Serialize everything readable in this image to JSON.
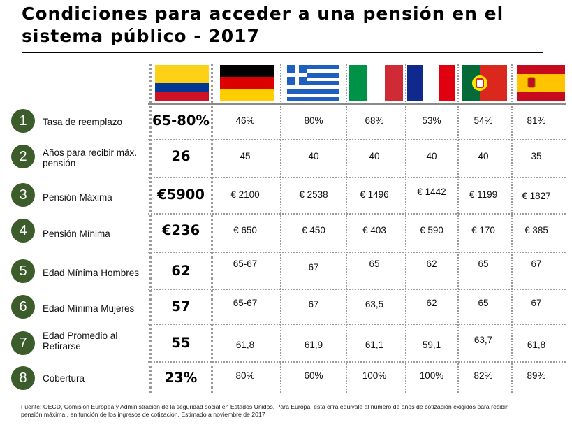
{
  "title": "Condiciones para acceder a una pensión en el sistema público - 2017",
  "countries": [
    "colombia-flag-icon",
    "germany-flag-icon",
    "greece-flag-icon",
    "italy-flag-icon",
    "france-flag-icon",
    "portugal-flag-icon",
    "spain-flag-icon"
  ],
  "rows": [
    {
      "num": "1",
      "label": "Tasa de reemplazo",
      "main": "65-80%",
      "values": [
        "46%",
        "80%",
        "68%",
        "53%",
        "54%",
        "81%"
      ]
    },
    {
      "num": "2",
      "label": "Años para recibir máx. pensión",
      "main": "26",
      "values": [
        "45",
        "40",
        "40",
        "40",
        "40",
        "35"
      ]
    },
    {
      "num": "3",
      "label": "Pensión Máxima",
      "main": "€5900",
      "values": [
        "€ 2100",
        "€ 2538",
        "€ 1496",
        "€ 1442",
        "€ 1199",
        "€ 1827"
      ]
    },
    {
      "num": "4",
      "label": "Pensión Mínima",
      "main": "€236",
      "values": [
        "€ 650",
        "€ 450",
        "€ 403",
        "€ 590",
        "€ 170",
        "€ 385"
      ]
    },
    {
      "num": "5",
      "label": "Edad Mínima Hombres",
      "main": "62",
      "values": [
        "65-67",
        "67",
        "65",
        "62",
        "65",
        "67"
      ]
    },
    {
      "num": "6",
      "label": "Edad Mínima Mujeres",
      "main": "57",
      "values": [
        "65-67",
        "67",
        "63,5",
        "62",
        "65",
        "67"
      ]
    },
    {
      "num": "7",
      "label": "Edad Promedio al Retirarse",
      "main": "55",
      "values": [
        "61,8",
        "61,9",
        "61,1",
        "59,1",
        "63,7",
        "61,8"
      ]
    },
    {
      "num": "8",
      "label": "Cobertura",
      "main": "23%",
      "values": [
        "80%",
        "60%",
        "100%",
        "100%",
        "82%",
        "89%"
      ]
    }
  ],
  "footnote": "Fuente: OECD, Comisión Europea y Administración de la seguridad social en Estados Unidos. Para Europa, esta cifra equivale al número de años  de cotización exigidos para recibir pensión máxima , en función de los ingresos de cotización. Estimado a noviembre de 2017",
  "colors": {
    "circle": "#3d5c2c",
    "separator": "#9a9a9a"
  }
}
